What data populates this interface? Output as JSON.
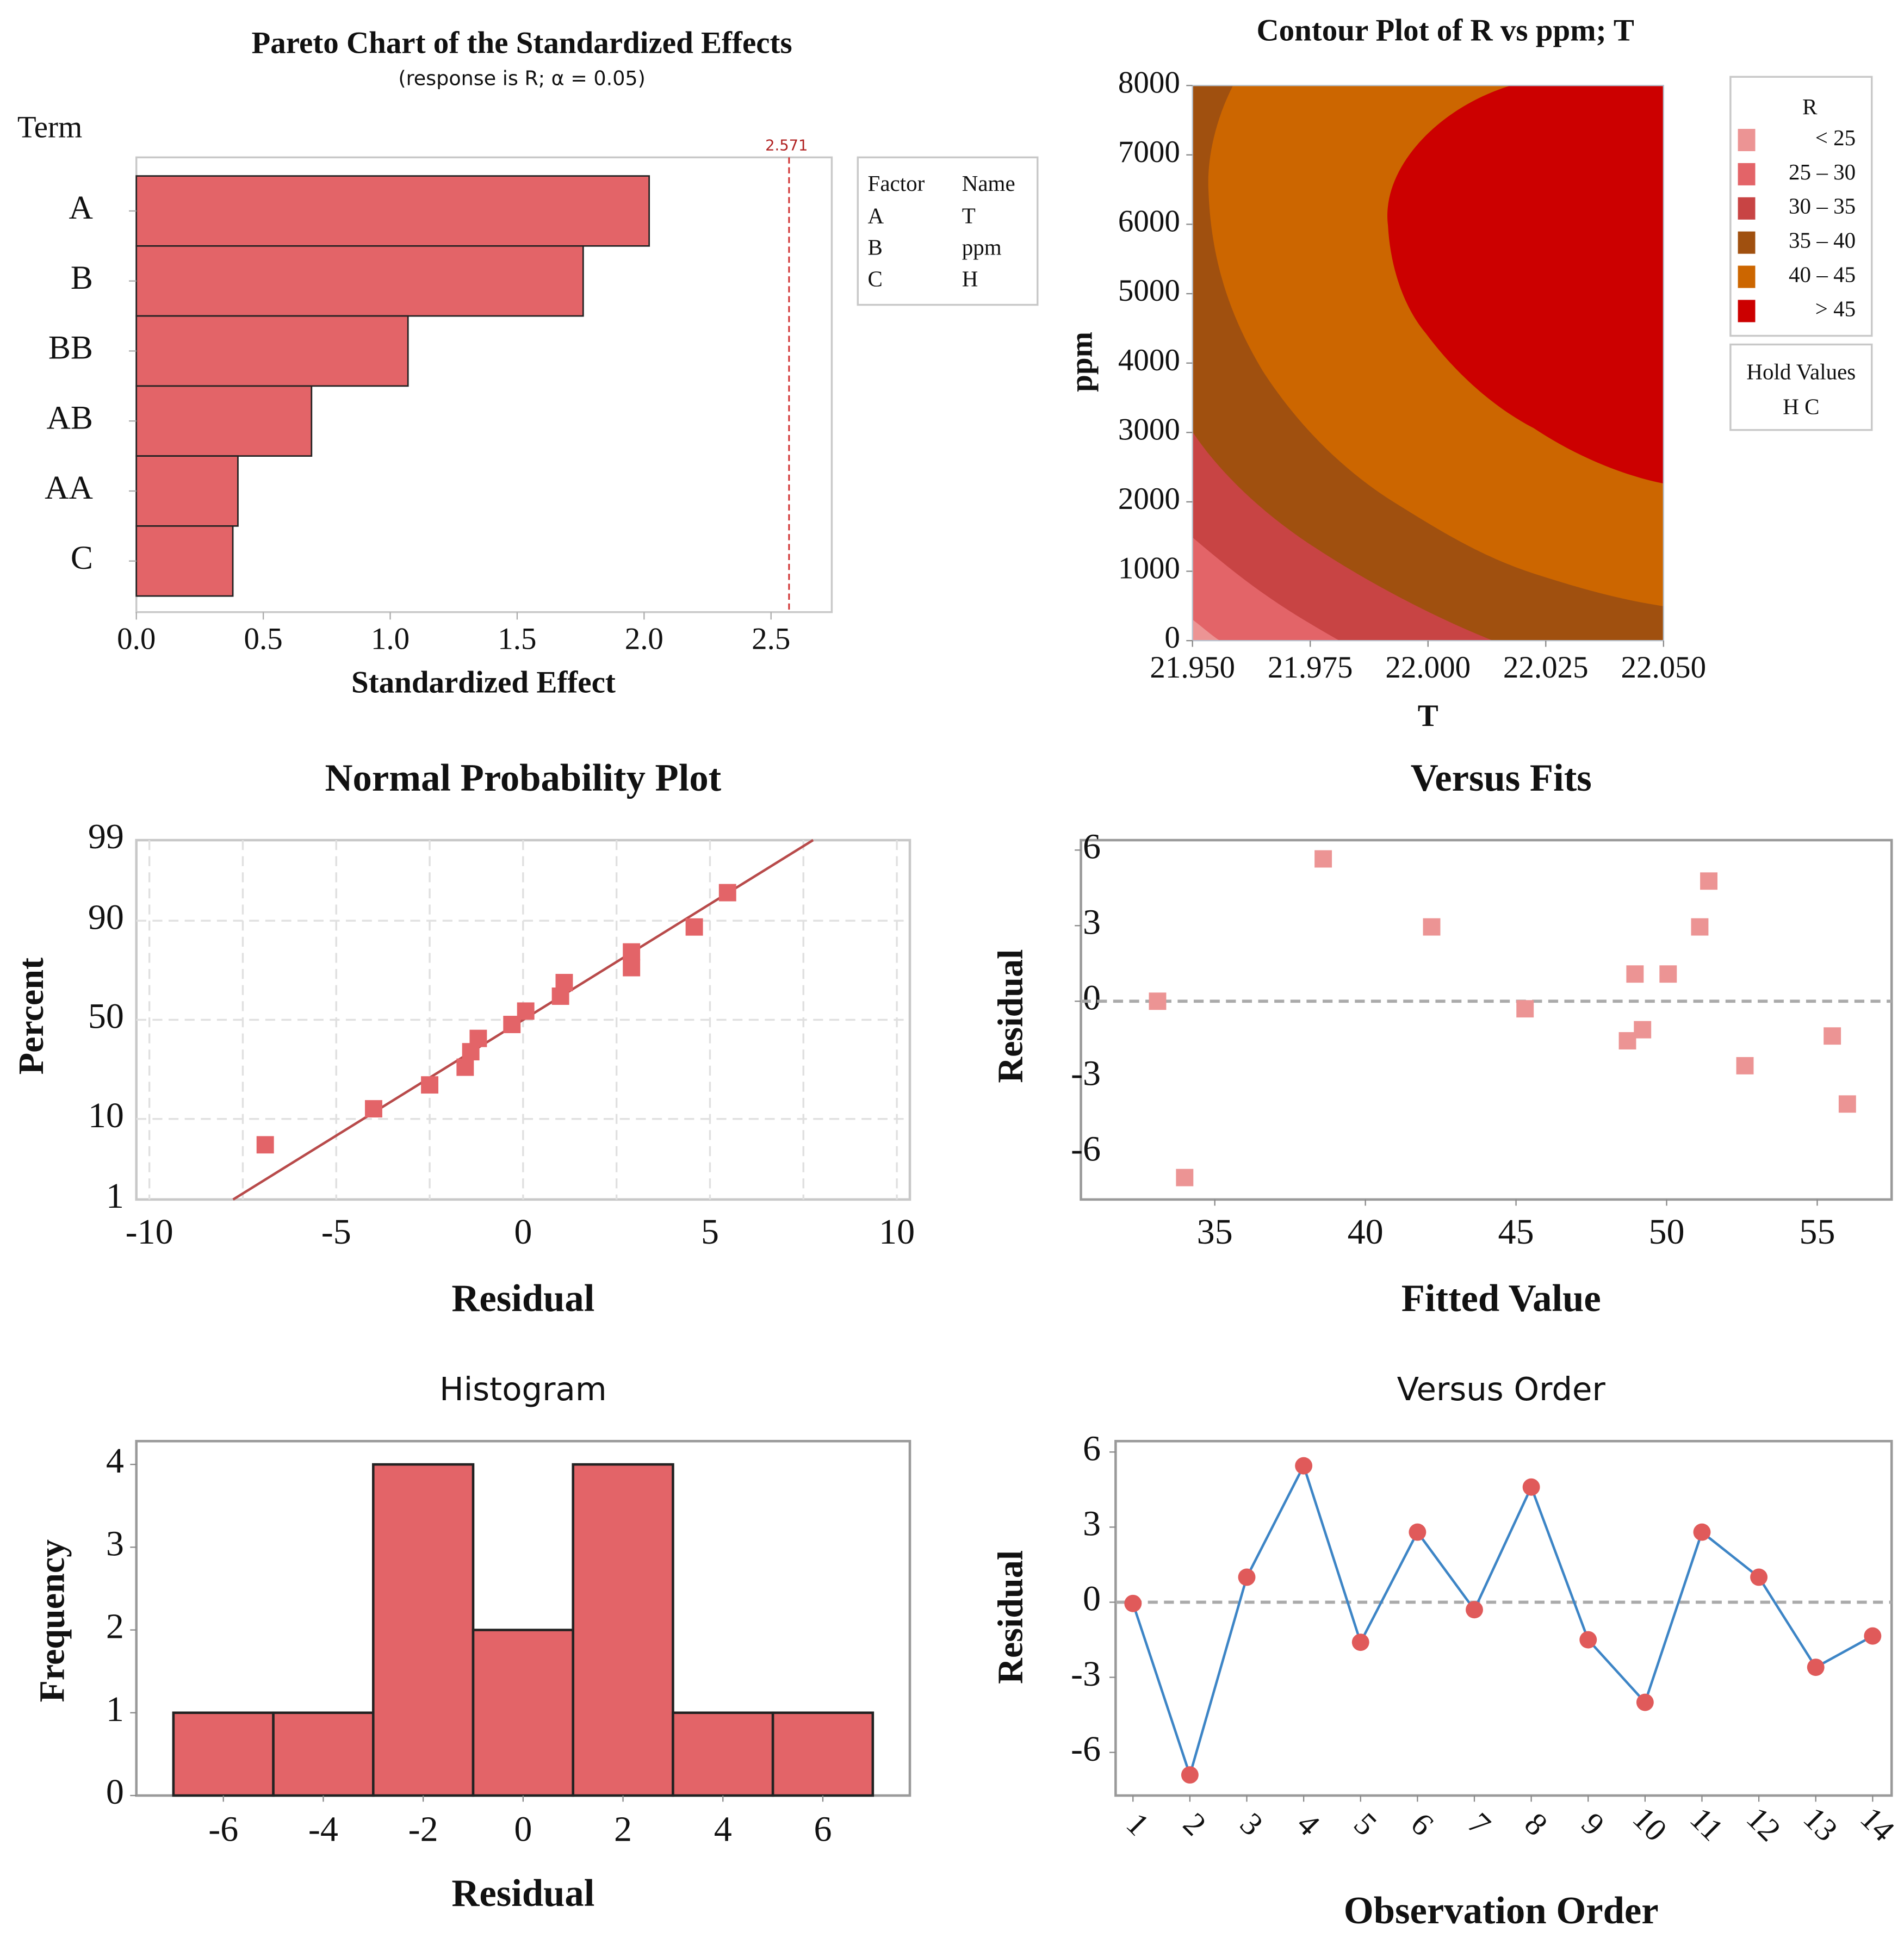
{
  "chart_data": [
    {
      "id": "pareto",
      "type": "bar",
      "orientation": "horizontal",
      "title": "Pareto Chart of the Standardized Effects",
      "subtitle": "(response is R; α = 0.05)",
      "ylabel": "Term",
      "xlabel": "Standardized Effect",
      "categories": [
        "A",
        "B",
        "BB",
        "AB",
        "AA",
        "C"
      ],
      "values": [
        2.02,
        1.76,
        1.07,
        0.69,
        0.4,
        0.38
      ],
      "xlim": [
        0,
        2.7
      ],
      "xticks": [
        0,
        0.5,
        1.0,
        1.5,
        2.0,
        2.5
      ],
      "xtick_labels": [
        "0.0",
        "0.5",
        "1.0",
        "1.5",
        "2.0",
        "2.5"
      ],
      "reference_line": {
        "value": 2.571,
        "label": "2.571"
      },
      "bar_color": "#E36468",
      "legend": {
        "headers": [
          "Factor",
          "Name"
        ],
        "rows": [
          [
            "A",
            "T"
          ],
          [
            "B",
            "ppm"
          ],
          [
            "C",
            "H"
          ]
        ],
        "placement": "right"
      }
    },
    {
      "id": "contour",
      "type": "contour",
      "title": "Contour Plot of R vs ppm; T",
      "xlabel": "T",
      "ylabel": "ppm",
      "xlim": [
        21.95,
        22.05
      ],
      "ylim": [
        0,
        8000
      ],
      "xtick_labels": [
        "21.950",
        "21.975",
        "22.000",
        "22.025",
        "22.050"
      ],
      "ytick_labels": [
        "0",
        "1000",
        "2000",
        "3000",
        "4000",
        "5000",
        "6000",
        "7000",
        "8000"
      ],
      "legend": {
        "title": "R",
        "levels": [
          {
            "label": "<  25",
            "color": "#EC9494"
          },
          {
            "label": "25  –  30",
            "color": "#E36468"
          },
          {
            "label": "30  –  35",
            "color": "#C84444"
          },
          {
            "label": "35  –  40",
            "color": "#A0500F"
          },
          {
            "label": "40  –  45",
            "color": "#CC6600"
          },
          {
            "label": ">  45",
            "color": "#CC0000"
          }
        ]
      },
      "hold_values": {
        "title": "Hold Values",
        "text": "H  C"
      }
    },
    {
      "id": "normal-probability",
      "type": "scatter",
      "title": "Normal Probability Plot",
      "xlabel": "Residual",
      "ylabel": "Percent",
      "x": [
        -6.9,
        -4.0,
        -2.5,
        -1.55,
        -1.4,
        -1.2,
        -0.3,
        0.07,
        1.0,
        1.1,
        2.9,
        2.9,
        4.58,
        5.47
      ],
      "y": [
        5.3,
        12.5,
        20,
        27,
        34,
        40.5,
        47.6,
        54.5,
        62,
        68.5,
        75,
        81,
        88.5,
        95
      ],
      "fit_line": {
        "x": [
          -7.76,
          7.76
        ],
        "y": [
          1,
          99
        ]
      },
      "xlim": [
        -10.3,
        10.4
      ],
      "xticks": [
        -10,
        -5,
        0,
        5,
        10
      ],
      "xtick_labels": [
        "-10",
        "-5",
        "0",
        "5",
        "10"
      ],
      "yticks": [
        1,
        10,
        50,
        90,
        99
      ],
      "ytick_labels": [
        "1",
        "10",
        "50",
        "90",
        "99"
      ],
      "grid": true,
      "marker_color": "#E36468",
      "line_color": "#B84A4A"
    },
    {
      "id": "versus-fits",
      "type": "scatter",
      "title": "Versus Fits",
      "xlabel": "Fitted Value",
      "ylabel": "Residual",
      "x": [
        33.1,
        34.0,
        38.6,
        42.2,
        45.3,
        48.7,
        48.95,
        49.2,
        50.05,
        51.1,
        51.4,
        52.6,
        55.5,
        56.0
      ],
      "y": [
        0.0,
        -7.0,
        5.65,
        2.95,
        -0.3,
        -1.57,
        1.08,
        -1.13,
        1.08,
        2.95,
        4.77,
        -2.56,
        -1.38,
        -4.08
      ],
      "xlim": [
        31.2,
        58.1
      ],
      "ylim": [
        -7.8,
        6.4
      ],
      "xticks": [
        35,
        40,
        45,
        50,
        55
      ],
      "xtick_labels": [
        "35",
        "40",
        "45",
        "50",
        "55"
      ],
      "yticks": [
        6,
        3,
        0,
        -3,
        -6
      ],
      "ytick_labels": [
        "6",
        "3",
        "0",
        "-3",
        "-6"
      ],
      "reference_line": 0,
      "marker_color": "#EC9494"
    },
    {
      "id": "histogram",
      "type": "bar",
      "title": "Histogram",
      "xlabel": "Residual",
      "ylabel": "Frequency",
      "bin_edges": [
        -7,
        -5,
        -3,
        -1,
        1,
        3,
        5,
        7
      ],
      "values": [
        1,
        1,
        4,
        2,
        4,
        1,
        1
      ],
      "xticks": [
        -6,
        -4,
        -2,
        0,
        2,
        4,
        6
      ],
      "xtick_labels": [
        "-6",
        "-4",
        "-2",
        "0",
        "2",
        "4",
        "6"
      ],
      "yticks": [
        0,
        1,
        2,
        3,
        4
      ],
      "ytick_labels": [
        "0",
        "1",
        "2",
        "3",
        "4"
      ],
      "ylim": [
        0,
        4.0
      ],
      "bar_color": "#E36468"
    },
    {
      "id": "versus-order",
      "type": "line",
      "title": "Versus Order",
      "xlabel": "Observation Order",
      "ylabel": "Residual",
      "x": [
        1,
        2,
        3,
        4,
        5,
        6,
        7,
        8,
        9,
        10,
        11,
        12,
        13,
        14
      ],
      "y": [
        -0.05,
        -6.9,
        1.0,
        5.45,
        -1.6,
        2.8,
        -0.3,
        4.6,
        -1.5,
        -4.0,
        2.8,
        1.0,
        -2.6,
        -1.35
      ],
      "xtick_labels": [
        "1",
        "2",
        "3",
        "4",
        "5",
        "6",
        "7",
        "8",
        "9",
        "10",
        "11",
        "12",
        "13",
        "14"
      ],
      "yticks": [
        6,
        3,
        0,
        -3,
        -6
      ],
      "ytick_labels": [
        "6",
        "3",
        "0",
        "-3",
        "-6"
      ],
      "reference_line": 0,
      "line_color": "#3D85C6",
      "marker_color": "#E05A5A"
    }
  ]
}
